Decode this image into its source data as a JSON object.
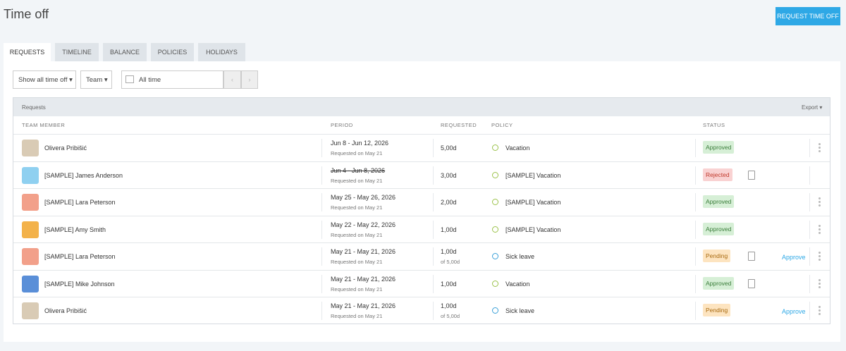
{
  "header": {
    "title": "Time off",
    "button": "REQUEST TIME OFF"
  },
  "tabs": [
    "REQUESTS",
    "TIMELINE",
    "BALANCE",
    "POLICIES",
    "HOLIDAYS"
  ],
  "filters": {
    "show": "Show all time off",
    "team": "Team",
    "range": "All time"
  },
  "table": {
    "section": "Requests",
    "export": "Export",
    "columns": [
      "TEAM MEMBER",
      "PERIOD",
      "REQUESTED",
      "POLICY",
      "STATUS"
    ],
    "rows": [
      {
        "member": "Olivera Pribišić",
        "period": "Jun 8 - Jun 12, 2026",
        "requested_on": "Requested on May 21",
        "requested": "5,00d",
        "policy": "Vacation",
        "status": "Approved"
      },
      {
        "member": "[SAMPLE] James Anderson",
        "period": "Jun 4 - Jun 8, 2026",
        "requested_on": "Requested on May 21",
        "requested": "3,00d",
        "policy": "[SAMPLE] Vacation",
        "status": "Rejected"
      },
      {
        "member": "[SAMPLE] Lara Peterson",
        "period": "May 25 - May 26, 2026",
        "requested_on": "Requested on May 21",
        "requested": "2,00d",
        "policy": "[SAMPLE] Vacation",
        "status": "Approved"
      },
      {
        "member": "[SAMPLE] Amy Smith",
        "period": "May 22 - May 22, 2026",
        "requested_on": "Requested on May 21",
        "requested": "1,00d",
        "policy": "[SAMPLE] Vacation",
        "status": "Approved"
      },
      {
        "member": "[SAMPLE] Lara Peterson",
        "period": "May 21 - May 21, 2026",
        "requested_on": "Requested on May 21",
        "requested": "1,00d",
        "requested_of": "of 5,00d",
        "policy": "Sick leave",
        "status": "Pending",
        "action": "Approve"
      },
      {
        "member": "[SAMPLE] Mike Johnson",
        "period": "May 21 - May 21, 2026",
        "requested_on": "Requested on May 21",
        "requested": "1,00d",
        "policy": "Vacation",
        "status": "Approved"
      },
      {
        "member": "Olivera Pribišić",
        "period": "May 21 - May 21, 2026",
        "requested_on": "Requested on May 21",
        "requested": "1,00d",
        "requested_of": "of 5,00d",
        "policy": "Sick leave",
        "status": "Pending",
        "action": "Approve"
      }
    ]
  }
}
